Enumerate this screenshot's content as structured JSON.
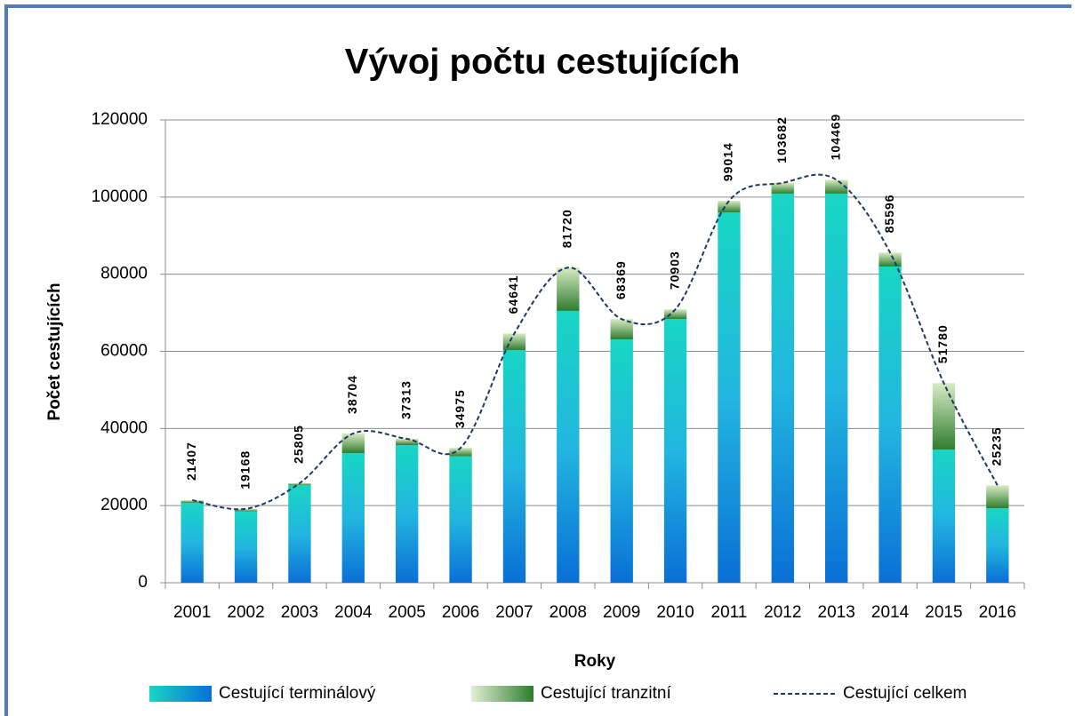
{
  "chart_data": {
    "type": "bar",
    "stacked": true,
    "title": "Vývoj počtu cestujících",
    "x_label": "Roky",
    "y_label": "Počet cestujících",
    "categories": [
      "2001",
      "2002",
      "2003",
      "2004",
      "2005",
      "2006",
      "2007",
      "2008",
      "2009",
      "2010",
      "2011",
      "2012",
      "2013",
      "2014",
      "2015",
      "2016"
    ],
    "series": [
      {
        "name": "Cestující terminálový",
        "type": "bar",
        "color": "#18d6c4",
        "values": [
          20700,
          18500,
          25300,
          33600,
          35700,
          32800,
          60300,
          70500,
          63100,
          68400,
          96000,
          100900,
          100900,
          82000,
          34500,
          19300
        ]
      },
      {
        "name": "Cestující tranzitní",
        "type": "bar",
        "color": "#2e7d2e",
        "values": [
          707,
          668,
          505,
          5104,
          1613,
          2175,
          4341,
          11220,
          5269,
          2503,
          3014,
          2782,
          3569,
          3596,
          17280,
          5935
        ]
      },
      {
        "name": "Cestující celkem",
        "type": "line",
        "color": "#1f3864",
        "values": [
          21407,
          19168,
          25805,
          38704,
          37313,
          34975,
          64641,
          81720,
          68369,
          70903,
          99014,
          103682,
          104469,
          85596,
          51780,
          25235
        ]
      }
    ],
    "ylim": [
      0,
      120000
    ],
    "yticks": [
      0,
      20000,
      40000,
      60000,
      80000,
      100000,
      120000
    ],
    "grid": true
  }
}
